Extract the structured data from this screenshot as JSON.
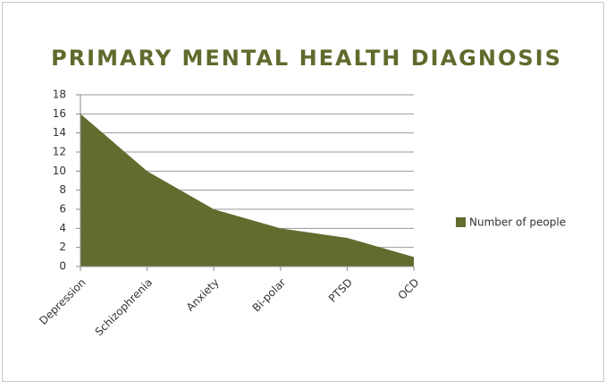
{
  "chart_data": {
    "type": "area",
    "title": "PRIMARY MENTAL HEALTH DIAGNOSIS",
    "categories": [
      "Depression",
      "Schizophrenia",
      "Anxiety",
      "Bi-polar",
      "PTSD",
      "OCD"
    ],
    "series": [
      {
        "name": "Number of people",
        "color": "#636b2f",
        "values": [
          16,
          10,
          6,
          4,
          3,
          1
        ]
      }
    ],
    "ylim": [
      0,
      18
    ],
    "yticks": [
      0,
      2,
      4,
      6,
      8,
      10,
      12,
      14,
      16,
      18
    ],
    "grid": true,
    "legend": "right"
  }
}
